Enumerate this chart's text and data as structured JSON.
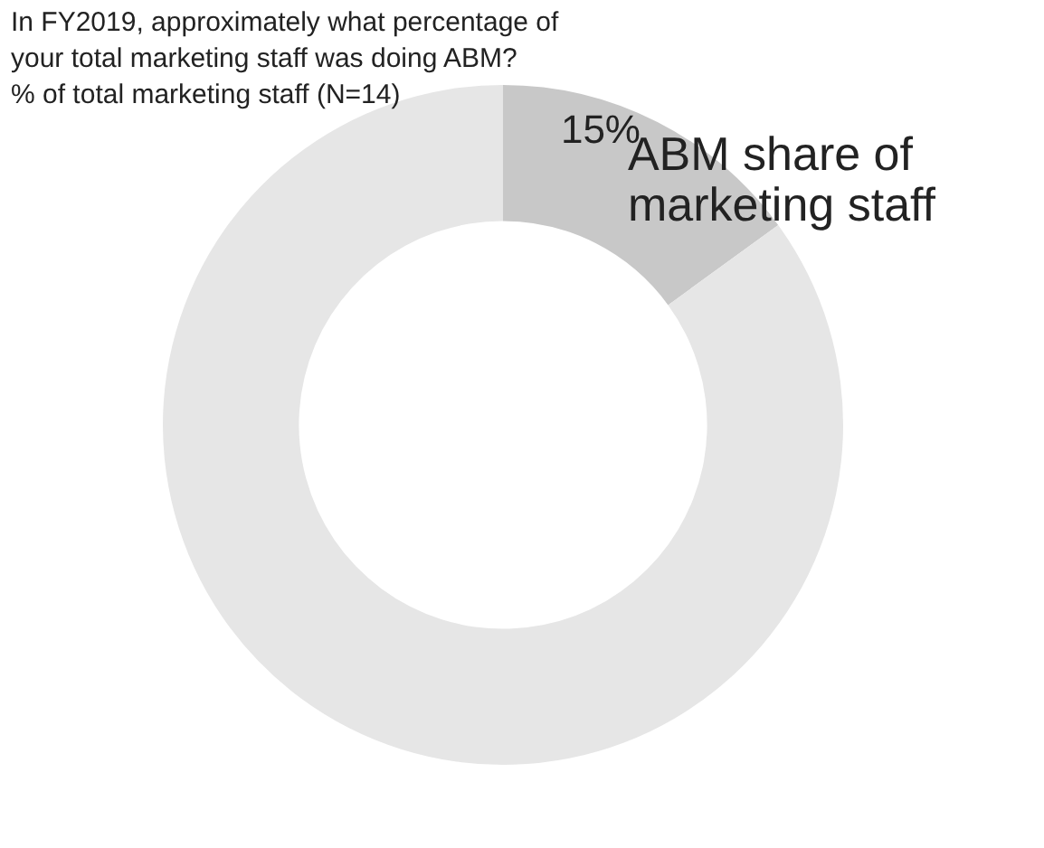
{
  "chart_data": {
    "type": "donut",
    "title": "In FY2019, approximately what percentage of your total marketing staff was doing ABM?",
    "subtitle": "% of total marketing staff (N=14)",
    "categories": [
      "ABM share of marketing staff",
      null
    ],
    "values": [
      15,
      85
    ],
    "colors": [
      "#c8c8c8",
      "#e6e6e6"
    ],
    "value_labels": [
      "15%",
      null
    ],
    "legend": false
  }
}
